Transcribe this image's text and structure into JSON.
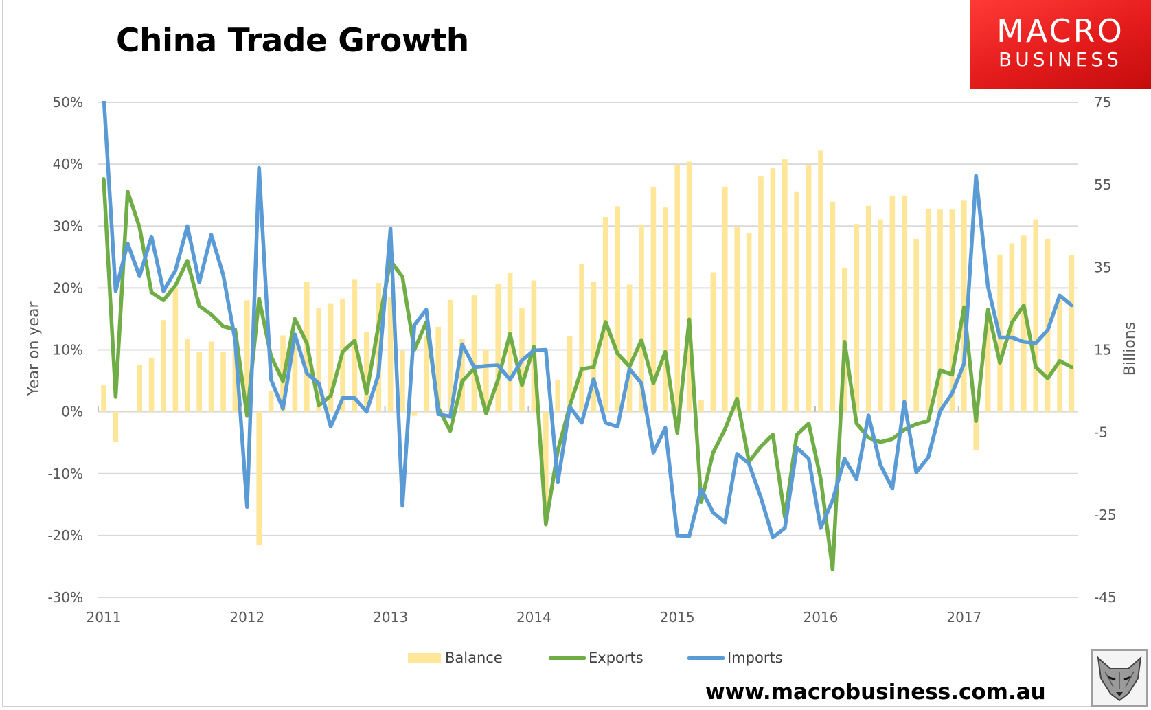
{
  "title": "China Trade Growth",
  "logo": {
    "line1": "MACRO",
    "line2": "BUSINESS"
  },
  "url": "www.macrobusiness.com.au",
  "colors": {
    "balance": "#FFE699",
    "exports": "#70AD47",
    "imports": "#5B9BD5",
    "logo_red": "#E31B1B",
    "grid": "#D9D9D9"
  },
  "chart_data": {
    "type": "bar+line",
    "title": "China Trade Growth",
    "ylabel": "Year on year",
    "y2label": "Billions",
    "ylim": [
      -30,
      50
    ],
    "y2lim": [
      -45,
      75
    ],
    "yticks": [
      "50%",
      "40%",
      "30%",
      "20%",
      "10%",
      "0%",
      "-10%",
      "-20%",
      "-30%"
    ],
    "y2ticks": [
      "75",
      "55",
      "35",
      "15",
      "-5",
      "-25",
      "-45"
    ],
    "xticks": [
      "2011",
      "2012",
      "2013",
      "2014",
      "2015",
      "2016",
      "2017"
    ],
    "grid": true,
    "legend_position": "bottom",
    "x": [
      "2011-01",
      "2011-02",
      "2011-03",
      "2011-04",
      "2011-05",
      "2011-06",
      "2011-07",
      "2011-08",
      "2011-09",
      "2011-10",
      "2011-11",
      "2011-12",
      "2012-01",
      "2012-02",
      "2012-03",
      "2012-04",
      "2012-05",
      "2012-06",
      "2012-07",
      "2012-08",
      "2012-09",
      "2012-10",
      "2012-11",
      "2012-12",
      "2013-01",
      "2013-02",
      "2013-03",
      "2013-04",
      "2013-05",
      "2013-06",
      "2013-07",
      "2013-08",
      "2013-09",
      "2013-10",
      "2013-11",
      "2013-12",
      "2014-01",
      "2014-02",
      "2014-03",
      "2014-04",
      "2014-05",
      "2014-06",
      "2014-07",
      "2014-08",
      "2014-09",
      "2014-10",
      "2014-11",
      "2014-12",
      "2015-01",
      "2015-02",
      "2015-03",
      "2015-04",
      "2015-05",
      "2015-06",
      "2015-07",
      "2015-08",
      "2015-09",
      "2015-10",
      "2015-11",
      "2015-12",
      "2016-01",
      "2016-02",
      "2016-03",
      "2016-04",
      "2016-05",
      "2016-06",
      "2016-07",
      "2016-08",
      "2016-09",
      "2016-10",
      "2016-11",
      "2016-12",
      "2017-01",
      "2017-02",
      "2017-03",
      "2017-04",
      "2017-05",
      "2017-06",
      "2017-07",
      "2017-08",
      "2017-09",
      "2017-10"
    ],
    "series": [
      {
        "name": "Balance",
        "type": "bar",
        "axis": "right",
        "values": [
          6.4,
          -7.4,
          -0.1,
          11.3,
          13.0,
          22.2,
          30.2,
          17.6,
          14.4,
          17.0,
          14.4,
          15.0,
          27.0,
          -32.2,
          5.0,
          18.5,
          19.0,
          31.5,
          25.1,
          26.3,
          27.3,
          32.0,
          19.4,
          31.2,
          27.9,
          14.8,
          -1.0,
          18.3,
          20.6,
          27.1,
          17.6,
          28.2,
          15.0,
          31.0,
          33.7,
          25.1,
          31.8,
          -23.0,
          7.6,
          18.3,
          35.8,
          31.5,
          47.2,
          49.8,
          30.8,
          45.4,
          54.4,
          49.5,
          59.9,
          60.6,
          2.9,
          33.8,
          54.4,
          44.9,
          43.2,
          57.0,
          59.0,
          61.2,
          53.4,
          59.9,
          63.3,
          50.9,
          34.9,
          45.5,
          49.9,
          46.6,
          52.2,
          52.4,
          41.9,
          49.2,
          49.0,
          49.0,
          51.3,
          -9.3,
          23.9,
          38.1,
          40.8,
          42.8,
          46.6,
          41.9,
          28.5,
          38.0
        ]
      },
      {
        "name": "Exports",
        "type": "line",
        "axis": "left",
        "values": [
          37.6,
          2.4,
          35.6,
          29.8,
          19.3,
          18.0,
          20.4,
          24.4,
          17.1,
          15.7,
          13.8,
          13.3,
          -0.7,
          18.3,
          9.0,
          4.9,
          15.0,
          11.1,
          1.0,
          2.6,
          9.7,
          11.5,
          3.0,
          14.0,
          24.4,
          21.8,
          10.0,
          14.5,
          0.6,
          -3.1,
          4.9,
          7.0,
          -0.3,
          5.2,
          12.6,
          4.3,
          10.5,
          -18.2,
          -6.3,
          0.9,
          6.9,
          7.2,
          14.5,
          9.4,
          7.3,
          11.6,
          4.6,
          9.7,
          -3.4,
          14.9,
          -14.6,
          -6.6,
          -2.8,
          2.1,
          -8.1,
          -5.6,
          -3.7,
          -17.0,
          -3.7,
          -1.9,
          -10.8,
          -25.5,
          11.3,
          -1.9,
          -4.2,
          -4.9,
          -4.4,
          -2.9,
          -2.0,
          -1.5,
          6.7,
          6.0,
          16.9,
          -1.5,
          16.5,
          7.9,
          14.4,
          17.2,
          7.2,
          5.4,
          8.2,
          7.2
        ]
      },
      {
        "name": "Imports",
        "type": "line",
        "axis": "left",
        "values": [
          51.0,
          19.5,
          27.2,
          21.9,
          28.3,
          19.5,
          22.8,
          30.0,
          20.9,
          28.6,
          22.1,
          11.6,
          -15.4,
          39.4,
          5.2,
          0.5,
          12.5,
          6.2,
          4.6,
          -2.4,
          2.2,
          2.2,
          0.0,
          6.0,
          29.6,
          -15.2,
          14.0,
          16.5,
          -0.4,
          -0.8,
          10.9,
          7.2,
          7.4,
          7.5,
          5.2,
          8.3,
          9.9,
          10.0,
          -11.4,
          0.8,
          -1.8,
          5.3,
          -1.8,
          -2.4,
          6.9,
          4.6,
          -6.6,
          -2.6,
          -20.0,
          -20.1,
          -12.5,
          -16.3,
          -17.9,
          -6.8,
          -8.4,
          -13.9,
          -20.3,
          -18.8,
          -5.8,
          -7.6,
          -18.8,
          -14.3,
          -7.6,
          -10.9,
          -0.6,
          -8.6,
          -12.4,
          1.6,
          -9.8,
          -7.4,
          0.1,
          3.0,
          7.8,
          38.1,
          20.2,
          12.0,
          12.0,
          11.3,
          11.1,
          13.2,
          18.8,
          17.2
        ]
      }
    ]
  }
}
